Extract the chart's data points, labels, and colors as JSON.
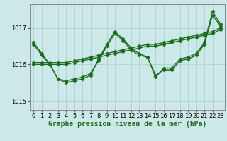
{
  "background_color": "#cce8e8",
  "grid_color": "#aacccc",
  "line_color": "#1a6b1a",
  "xlabel": "Graphe pression niveau de la mer (hPa)",
  "xlabel_fontsize": 7,
  "tick_fontsize": 6,
  "yticks": [
    1015,
    1016,
    1017
  ],
  "ylim": [
    1014.75,
    1017.65
  ],
  "xlim": [
    -0.5,
    23.5
  ],
  "xticks": [
    0,
    1,
    2,
    3,
    4,
    5,
    6,
    7,
    8,
    9,
    10,
    11,
    12,
    13,
    14,
    15,
    16,
    17,
    18,
    19,
    20,
    21,
    22,
    23
  ],
  "series": [
    {
      "x": [
        0,
        1,
        2,
        3,
        4,
        5,
        6,
        7,
        8,
        9,
        10,
        11,
        12,
        13,
        14,
        15,
        16,
        17,
        18,
        19,
        20,
        21,
        22,
        23
      ],
      "y": [
        1016.0,
        1016.0,
        1016.0,
        1016.0,
        1016.0,
        1016.05,
        1016.1,
        1016.15,
        1016.2,
        1016.25,
        1016.3,
        1016.35,
        1016.4,
        1016.45,
        1016.5,
        1016.5,
        1016.55,
        1016.6,
        1016.65,
        1016.7,
        1016.75,
        1016.8,
        1016.85,
        1016.95
      ]
    },
    {
      "x": [
        0,
        1,
        2,
        3,
        4,
        5,
        6,
        7,
        8,
        9,
        10,
        11,
        12,
        13,
        14,
        15,
        16,
        17,
        18,
        19,
        20,
        21,
        22,
        23
      ],
      "y": [
        1016.05,
        1016.05,
        1016.05,
        1016.05,
        1016.05,
        1016.1,
        1016.15,
        1016.2,
        1016.25,
        1016.3,
        1016.35,
        1016.4,
        1016.45,
        1016.5,
        1016.55,
        1016.55,
        1016.6,
        1016.65,
        1016.7,
        1016.75,
        1016.8,
        1016.85,
        1016.9,
        1017.0
      ]
    },
    {
      "x": [
        0,
        1,
        2,
        3,
        4,
        5,
        6,
        7,
        8,
        9,
        10,
        11,
        12,
        13,
        14,
        15,
        16,
        17,
        18,
        19,
        20,
        21,
        22,
        23
      ],
      "y": [
        1016.55,
        1016.25,
        1016.0,
        1015.6,
        1015.55,
        1015.6,
        1015.65,
        1015.75,
        1016.1,
        1016.5,
        1016.85,
        1016.65,
        1016.4,
        1016.25,
        1016.2,
        1015.7,
        1015.85,
        1015.85,
        1016.1,
        1016.15,
        1016.25,
        1016.55,
        1017.35,
        1017.05
      ]
    },
    {
      "x": [
        0,
        1,
        2,
        3,
        4,
        5,
        6,
        7,
        8,
        9,
        10,
        11,
        12,
        13,
        14,
        15,
        16,
        17,
        18,
        19,
        20,
        21,
        22,
        23
      ],
      "y": [
        1016.6,
        1016.3,
        1016.0,
        1015.6,
        1015.5,
        1015.55,
        1015.6,
        1015.7,
        1016.15,
        1016.55,
        1016.9,
        1016.7,
        1016.45,
        1016.3,
        1016.2,
        1015.65,
        1015.9,
        1015.9,
        1016.15,
        1016.2,
        1016.3,
        1016.6,
        1017.45,
        1017.1
      ]
    }
  ],
  "marker": "D",
  "markersize": 2.5,
  "linewidth": 1.0
}
